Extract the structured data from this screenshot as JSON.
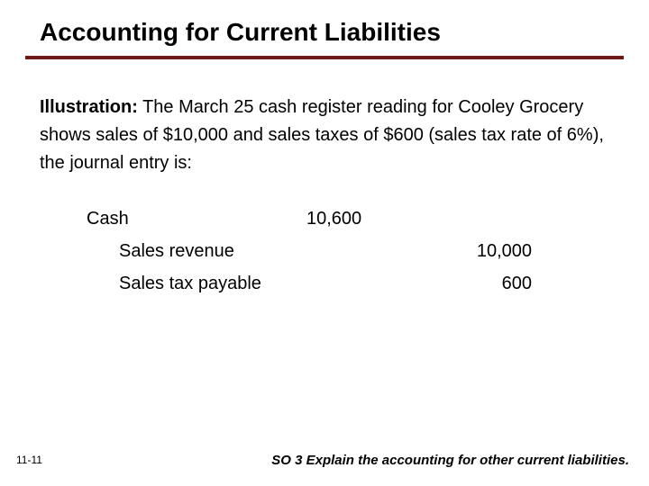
{
  "colors": {
    "rule": "#6b1818",
    "text": "#000000",
    "background": "#ffffff"
  },
  "typography": {
    "title_fontsize": 28,
    "body_fontsize": 20,
    "footer_fontsize": 15,
    "slidenum_fontsize": 12,
    "font_family": "Arial"
  },
  "title": "Accounting for Current Liabilities",
  "illustration": {
    "lead": "Illustration:",
    "text": "  The March 25 cash register reading for Cooley Grocery shows sales of $10,000 and sales taxes of $600 (sales tax rate of 6%), the journal entry is:"
  },
  "journal": {
    "rows": [
      {
        "account": "Cash",
        "debit": "10,600",
        "credit": "",
        "indent": 0
      },
      {
        "account": "Sales revenue",
        "debit": "",
        "credit": "10,000",
        "indent": 1
      },
      {
        "account": "Sales tax payable",
        "debit": "",
        "credit": "600",
        "indent": 1
      }
    ]
  },
  "slide_number": "11-11",
  "so_line": "SO 3  Explain the accounting for other current liabilities."
}
